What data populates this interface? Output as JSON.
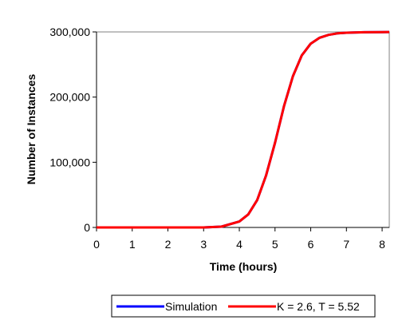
{
  "chart_data": {
    "type": "line",
    "title": "",
    "xlabel": "Time (hours)",
    "ylabel": "Number of Instances",
    "xlim": [
      0,
      8.2
    ],
    "ylim": [
      0,
      300000
    ],
    "x_ticks": [
      0,
      1,
      2,
      3,
      4,
      5,
      6,
      7,
      8
    ],
    "x_tick_labels": [
      "0",
      "1",
      "2",
      "3",
      "4",
      "5",
      "6",
      "7",
      "8"
    ],
    "y_ticks": [
      0,
      100000,
      200000,
      300000
    ],
    "y_tick_labels": [
      "0",
      "100,000",
      "200,000",
      "300,000"
    ],
    "grid": false,
    "legend_position": "bottom",
    "series": [
      {
        "name": "Simulation",
        "color": "#0000ff",
        "x": [
          0,
          1,
          2,
          3,
          3.5,
          4,
          4.25,
          4.5,
          4.75,
          5,
          5.25,
          5.5,
          5.75,
          6,
          6.25,
          6.5,
          6.75,
          7,
          7.5,
          8,
          8.2
        ],
        "y": [
          0,
          0,
          0,
          50,
          1200,
          9000,
          20000,
          42000,
          80000,
          130000,
          186000,
          232000,
          264000,
          282000,
          291000,
          295500,
          297800,
          298800,
          299500,
          299800,
          299850
        ]
      },
      {
        "name": "K = 2.6, T = 5.52",
        "color": "#ff0000",
        "x": [
          0,
          1,
          2,
          3,
          3.5,
          4,
          4.25,
          4.5,
          4.75,
          5,
          5.25,
          5.5,
          5.75,
          6,
          6.25,
          6.5,
          6.75,
          7,
          7.5,
          8,
          8.2
        ],
        "y": [
          0,
          0,
          0,
          50,
          1200,
          9000,
          20000,
          42000,
          80000,
          130000,
          186000,
          232000,
          264000,
          282000,
          291000,
          295500,
          297800,
          298800,
          299500,
          299800,
          299850
        ]
      }
    ]
  }
}
